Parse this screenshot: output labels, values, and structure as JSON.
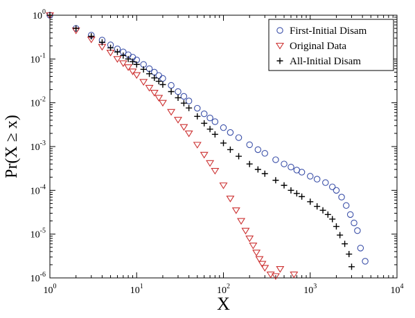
{
  "chart_data": {
    "type": "scatter",
    "xlabel": "X",
    "ylabel": "Pr(X ≥ x)",
    "x_scale": "log",
    "y_scale": "log",
    "xlim": [
      1,
      10000
    ],
    "ylim": [
      1e-06,
      1
    ],
    "x_ticks": [
      {
        "value": 1,
        "base": "10",
        "exp": "0"
      },
      {
        "value": 10,
        "base": "10",
        "exp": "1"
      },
      {
        "value": 100,
        "base": "10",
        "exp": "2"
      },
      {
        "value": 1000,
        "base": "10",
        "exp": "3"
      },
      {
        "value": 10000,
        "base": "10",
        "exp": "4"
      }
    ],
    "y_ticks": [
      {
        "value": 1,
        "base": "10",
        "exp": "0"
      },
      {
        "value": 0.1,
        "base": "10",
        "exp": "-1"
      },
      {
        "value": 0.01,
        "base": "10",
        "exp": "-2"
      },
      {
        "value": 0.001,
        "base": "10",
        "exp": "-3"
      },
      {
        "value": 0.0001,
        "base": "10",
        "exp": "-4"
      },
      {
        "value": 1e-05,
        "base": "10",
        "exp": "-5"
      },
      {
        "value": 1e-06,
        "base": "10",
        "exp": "-6"
      }
    ],
    "grid": false,
    "legend_position": "top-right",
    "series": [
      {
        "name": "First-Initial Disam",
        "marker": "circle",
        "color": "#3a4fa8",
        "x": [
          1,
          2,
          3,
          4,
          5,
          6,
          7,
          8,
          9,
          10,
          12,
          14,
          16,
          18,
          20,
          25,
          30,
          35,
          40,
          50,
          60,
          70,
          80,
          100,
          120,
          150,
          200,
          250,
          300,
          400,
          500,
          600,
          700,
          800,
          1000,
          1200,
          1500,
          1800,
          2000,
          2300,
          2600,
          2900,
          3200,
          3500,
          3800,
          4300
        ],
        "y": [
          1,
          0.5,
          0.35,
          0.27,
          0.21,
          0.17,
          0.145,
          0.125,
          0.11,
          0.095,
          0.075,
          0.06,
          0.05,
          0.042,
          0.036,
          0.025,
          0.018,
          0.014,
          0.011,
          0.0075,
          0.0056,
          0.0045,
          0.0037,
          0.0027,
          0.0021,
          0.0016,
          0.0011,
          0.00085,
          0.0007,
          0.0005,
          0.0004,
          0.00034,
          0.00029,
          0.00026,
          0.00021,
          0.00018,
          0.00015,
          0.00012,
          0.0001,
          7e-05,
          4.5e-05,
          2.8e-05,
          1.8e-05,
          1.2e-05,
          4.8e-06,
          2.4e-06
        ]
      },
      {
        "name": "Original Data",
        "marker": "triangle-down",
        "color": "#cc3030",
        "x": [
          1,
          2,
          3,
          4,
          5,
          6,
          7,
          8,
          9,
          10,
          12,
          14,
          16,
          18,
          20,
          25,
          30,
          35,
          40,
          50,
          60,
          70,
          80,
          100,
          120,
          140,
          160,
          180,
          200,
          220,
          240,
          260,
          280,
          300,
          350,
          400,
          450,
          650
        ],
        "y": [
          1,
          0.45,
          0.28,
          0.19,
          0.14,
          0.1,
          0.08,
          0.065,
          0.052,
          0.043,
          0.03,
          0.022,
          0.017,
          0.013,
          0.01,
          0.0062,
          0.0041,
          0.0028,
          0.002,
          0.0011,
          0.00065,
          0.00042,
          0.00028,
          0.00013,
          6.5e-05,
          3.5e-05,
          2e-05,
          1.2e-05,
          8e-06,
          5.5e-06,
          3.8e-06,
          2.7e-06,
          2.1e-06,
          1.7e-06,
          1.2e-06,
          1.1e-06,
          1.6e-06,
          1.2e-06
        ]
      },
      {
        "name": "All-Initial Disam",
        "marker": "plus",
        "color": "#000000",
        "x": [
          1,
          2,
          3,
          4,
          5,
          6,
          7,
          8,
          9,
          10,
          12,
          14,
          16,
          18,
          20,
          25,
          30,
          35,
          40,
          50,
          60,
          70,
          80,
          100,
          120,
          150,
          200,
          250,
          300,
          400,
          500,
          600,
          700,
          800,
          1000,
          1200,
          1400,
          1600,
          1800,
          2000,
          2200,
          2500,
          2800,
          3000
        ],
        "y": [
          1,
          0.5,
          0.33,
          0.24,
          0.18,
          0.145,
          0.12,
          0.1,
          0.087,
          0.075,
          0.058,
          0.046,
          0.037,
          0.031,
          0.026,
          0.018,
          0.013,
          0.0098,
          0.0076,
          0.0049,
          0.0034,
          0.0025,
          0.0019,
          0.0012,
          0.00085,
          0.0006,
          0.0004,
          0.0003,
          0.00024,
          0.00017,
          0.00013,
          0.0001,
          8.5e-05,
          7.2e-05,
          5.5e-05,
          4.3e-05,
          3.5e-05,
          2.8e-05,
          2.2e-05,
          1.5e-05,
          9.5e-06,
          6e-06,
          3.5e-06,
          1.8e-06
        ]
      }
    ]
  }
}
